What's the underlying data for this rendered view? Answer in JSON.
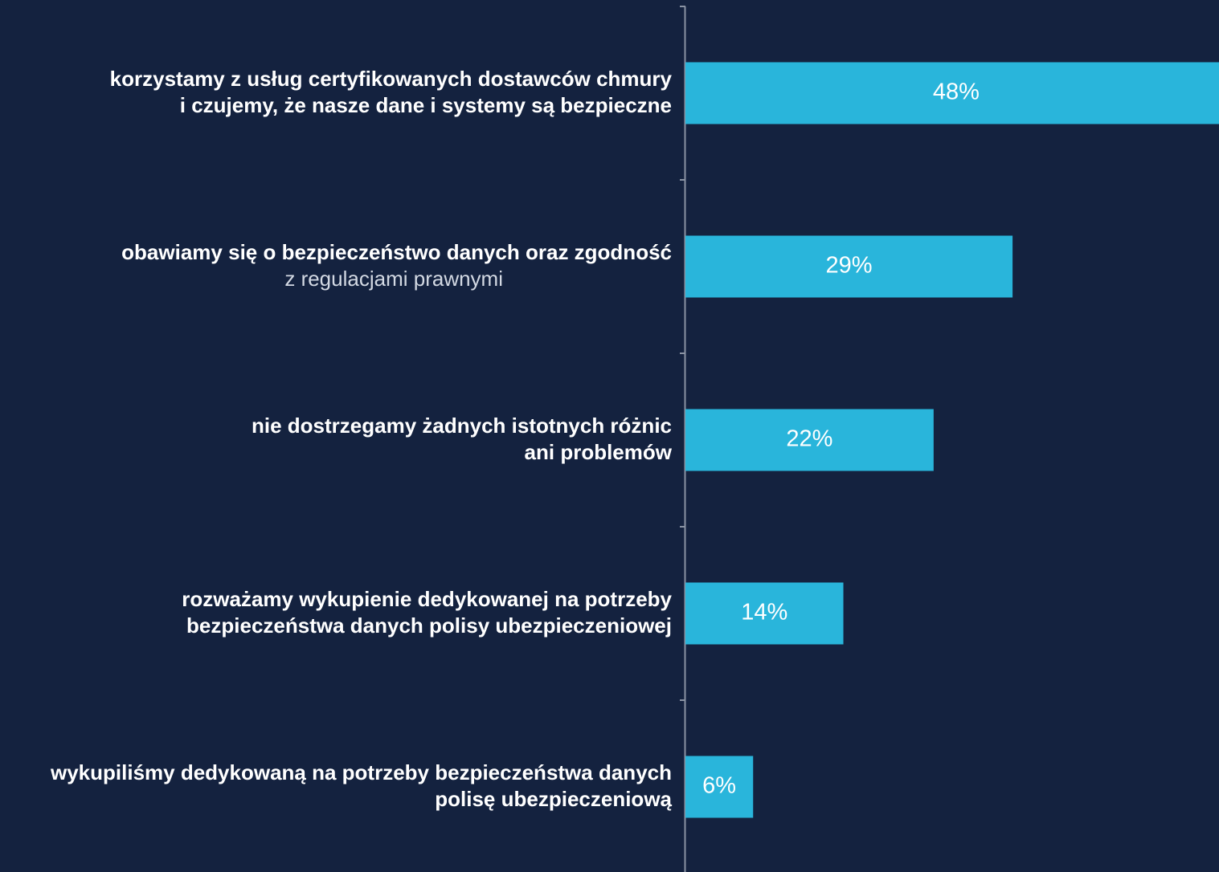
{
  "chart_data": {
    "type": "barh",
    "categories": [
      [
        "korzystamy z usług certyfikowanych dostawców chmury",
        "i czujemy, że nasze dane i systemy są bezpieczne"
      ],
      [
        "obawiamy się o bezpieczeństwo danych oraz zgodność",
        "z regulacjami prawnymi"
      ],
      [
        "nie dostrzegamy żadnych istotnych różnic",
        "ani problemów"
      ],
      [
        "rozważamy wykupienie dedykowanej na potrzeby",
        "bezpieczeństwa danych polisy ubezpieczeniowej"
      ],
      [
        "wykupiliśmy dedykowaną na potrzeby bezpieczeństwa danych",
        "polisę ubezpieczeniową"
      ]
    ],
    "values": [
      48,
      29,
      22,
      14,
      6
    ],
    "value_labels": [
      "48%",
      "29%",
      "22%",
      "14%",
      "6%"
    ],
    "color": "#29b5db",
    "xlim": [
      0,
      47.3
    ]
  }
}
